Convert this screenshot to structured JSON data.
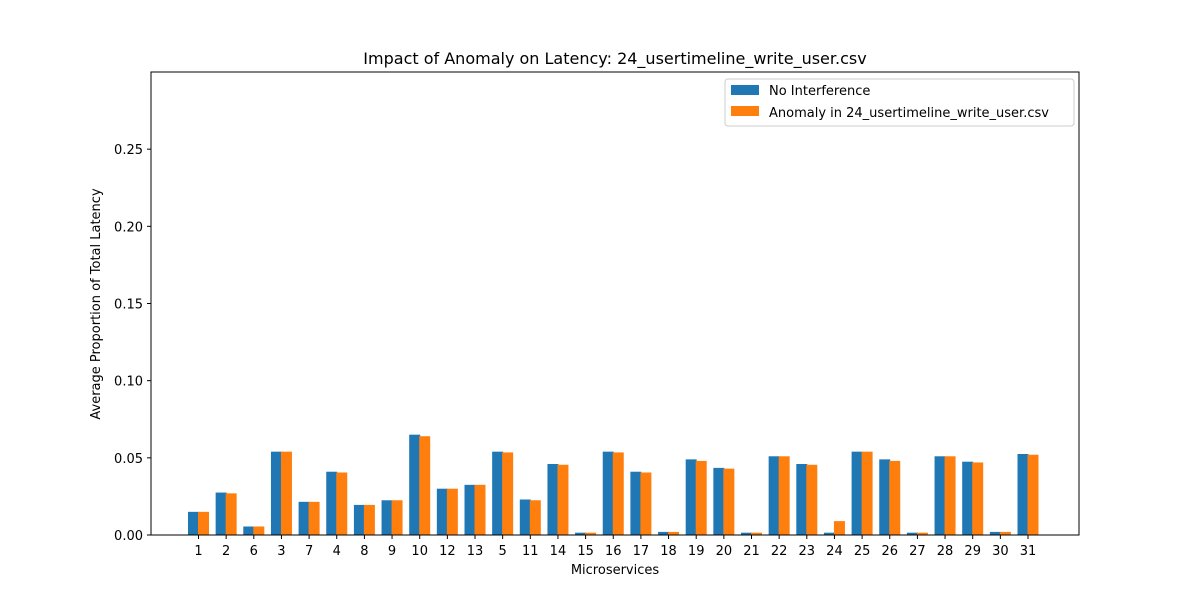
{
  "chart_data": {
    "type": "bar",
    "title": "Impact of Anomaly on Latency: 24_usertimeline_write_user.csv",
    "xlabel": "Microservices",
    "ylabel": "Average Proportion of Total Latency",
    "ylim": [
      0,
      0.3
    ],
    "yticks": [
      "0.00",
      "0.05",
      "0.10",
      "0.15",
      "0.20",
      "0.25"
    ],
    "ytick_values": [
      0,
      0.05,
      0.1,
      0.15,
      0.2,
      0.25
    ],
    "grid": false,
    "legend_position": "top-right",
    "categories": [
      "1",
      "2",
      "6",
      "3",
      "7",
      "4",
      "8",
      "9",
      "10",
      "12",
      "13",
      "5",
      "11",
      "14",
      "15",
      "16",
      "17",
      "18",
      "19",
      "20",
      "21",
      "22",
      "23",
      "24",
      "25",
      "26",
      "27",
      "28",
      "29",
      "30",
      "31"
    ],
    "series": [
      {
        "name": "No Interference",
        "color": "#1f77b4",
        "values": [
          0.015,
          0.0275,
          0.0055,
          0.054,
          0.0215,
          0.041,
          0.0195,
          0.0225,
          0.065,
          0.03,
          0.0325,
          0.054,
          0.023,
          0.046,
          0.0015,
          0.054,
          0.041,
          0.002,
          0.049,
          0.0435,
          0.0015,
          0.051,
          0.046,
          0.0015,
          0.054,
          0.049,
          0.0015,
          0.051,
          0.0475,
          0.002,
          0.0525
        ]
      },
      {
        "name": "Anomaly in 24_usertimeline_write_user.csv",
        "color": "#ff7f0e",
        "values": [
          0.015,
          0.027,
          0.0055,
          0.054,
          0.0215,
          0.0405,
          0.0195,
          0.0225,
          0.064,
          0.03,
          0.0325,
          0.0535,
          0.0225,
          0.0455,
          0.0015,
          0.0535,
          0.0405,
          0.002,
          0.048,
          0.043,
          0.0015,
          0.051,
          0.0455,
          0.009,
          0.054,
          0.048,
          0.0015,
          0.051,
          0.047,
          0.002,
          0.052
        ]
      }
    ]
  }
}
